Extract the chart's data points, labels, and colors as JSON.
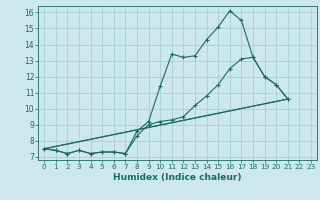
{
  "title": "",
  "xlabel": "Humidex (Indice chaleur)",
  "bg_color": "#cce8ee",
  "grid_color": "#aacdd6",
  "line_color": "#1a6b5e",
  "xlim": [
    -0.5,
    23.5
  ],
  "ylim": [
    6.8,
    16.4
  ],
  "xticks": [
    0,
    1,
    2,
    3,
    4,
    5,
    6,
    7,
    8,
    9,
    10,
    11,
    12,
    13,
    14,
    15,
    16,
    17,
    18,
    19,
    20,
    21,
    22,
    23
  ],
  "yticks": [
    7,
    8,
    9,
    10,
    11,
    12,
    13,
    14,
    15,
    16
  ],
  "series": [
    {
      "x": [
        0,
        1,
        2,
        3,
        4,
        5,
        6,
        7,
        8,
        9,
        10,
        11,
        12,
        13,
        14,
        15,
        16,
        17,
        18,
        19,
        20,
        21
      ],
      "y": [
        7.5,
        7.4,
        7.2,
        7.4,
        7.2,
        7.3,
        7.3,
        7.2,
        8.6,
        9.2,
        11.4,
        13.4,
        13.2,
        13.3,
        14.3,
        15.1,
        16.1,
        15.5,
        13.2,
        12.0,
        11.5,
        10.6
      ],
      "marker": true
    },
    {
      "x": [
        0,
        1,
        2,
        3,
        4,
        5,
        6,
        7,
        8,
        9,
        10,
        11,
        12,
        13,
        14,
        15,
        16,
        17,
        18,
        19,
        20,
        21
      ],
      "y": [
        7.5,
        7.4,
        7.2,
        7.4,
        7.2,
        7.3,
        7.3,
        7.2,
        8.3,
        9.0,
        9.2,
        9.3,
        9.5,
        10.2,
        10.8,
        11.5,
        12.5,
        13.1,
        13.2,
        12.0,
        11.5,
        10.6
      ],
      "marker": true
    },
    {
      "x": [
        0,
        21
      ],
      "y": [
        7.5,
        10.6
      ],
      "marker": false
    },
    {
      "x": [
        0,
        21
      ],
      "y": [
        7.5,
        10.6
      ],
      "marker": false
    }
  ]
}
